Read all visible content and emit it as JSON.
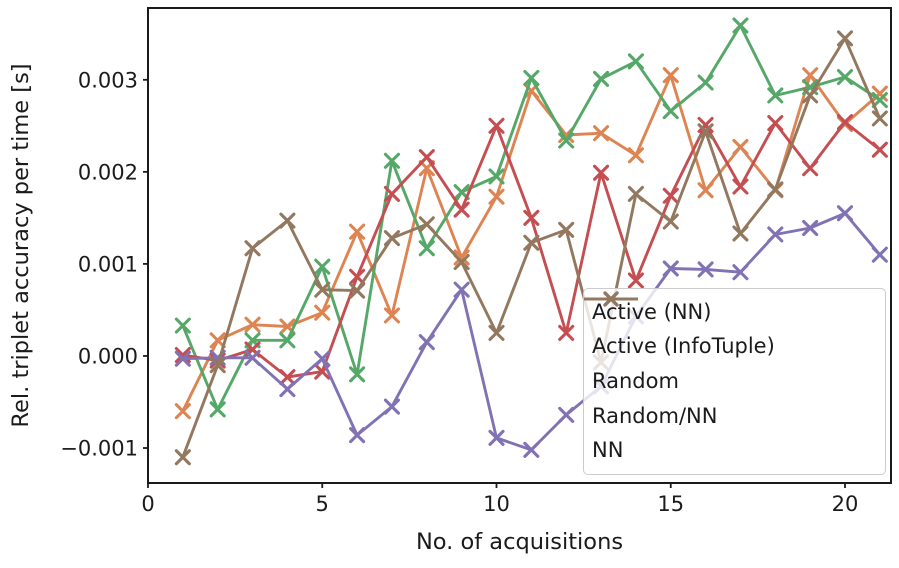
{
  "figure": {
    "xlabel": "No. of acquisitions",
    "ylabel": "Rel. triplet accuracy per time [s]"
  },
  "chart_data": {
    "type": "line",
    "title": "",
    "xlabel": "No. of acquisitions",
    "ylabel": "Rel. triplet accuracy per time [s]",
    "marker": "x",
    "grid": false,
    "legend_position": "lower right",
    "xlim": [
      0,
      21.32
    ],
    "ylim": [
      -0.00138,
      0.00378
    ],
    "xticks": {
      "values": [
        0,
        5,
        10,
        15,
        20
      ],
      "labels": [
        "0",
        "5",
        "10",
        "15",
        "20"
      ]
    },
    "yticks": {
      "values": [
        -0.001,
        0.0,
        0.001,
        0.002,
        0.003
      ],
      "labels": [
        "−0.001",
        "0.000",
        "0.001",
        "0.002",
        "0.003"
      ]
    },
    "x": [
      1,
      2,
      3,
      4,
      5,
      6,
      7,
      8,
      9,
      10,
      11,
      12,
      13,
      14,
      15,
      16,
      17,
      18,
      19,
      20,
      21
    ],
    "series": [
      {
        "name": "Active (NN)",
        "color": "#dd8452",
        "values": [
          -0.0006,
          0.00017,
          0.00034,
          0.00032,
          0.00047,
          0.00135,
          0.00044,
          0.00204,
          0.00107,
          0.00173,
          0.00288,
          0.0024,
          0.00242,
          0.00218,
          0.00305,
          0.0018,
          0.00227,
          0.0018,
          0.00305,
          0.00252,
          0.00285
        ]
      },
      {
        "name": "Active (InfoTuple)",
        "color": "#55a868",
        "values": [
          0.00033,
          -0.00058,
          0.00017,
          0.00017,
          0.00097,
          -0.0002,
          0.00212,
          0.00117,
          0.00178,
          0.00195,
          0.00302,
          0.00234,
          0.00301,
          0.0032,
          0.00266,
          0.00297,
          0.00359,
          0.00283,
          0.00292,
          0.00303,
          0.00278
        ]
      },
      {
        "name": "Random",
        "color": "#c44e52",
        "values": [
          1e-05,
          -5e-05,
          7e-05,
          -0.00023,
          -0.00017,
          0.00086,
          0.00176,
          0.00216,
          0.00159,
          0.0025,
          0.0015,
          0.00025,
          0.00199,
          0.00082,
          0.00174,
          0.00251,
          0.00184,
          0.00253,
          0.00204,
          0.00254,
          0.00224
        ]
      },
      {
        "name": "Random/NN",
        "color": "#8172b3",
        "values": [
          -3e-05,
          -2e-05,
          -2e-05,
          -0.00036,
          -3e-05,
          -0.00086,
          -0.00055,
          0.00015,
          0.00072,
          -0.00089,
          -0.00102,
          -0.00064,
          -0.00033,
          0.00043,
          0.00095,
          0.00094,
          0.00091,
          0.00132,
          0.00139,
          0.00155,
          0.0011
        ]
      },
      {
        "name": "NN",
        "color": "#937860",
        "values": [
          -0.0011,
          -0.0001,
          0.00117,
          0.00147,
          0.00072,
          0.00071,
          0.00128,
          0.00143,
          0.00102,
          0.00025,
          0.00123,
          0.00137,
          -7e-05,
          0.00176,
          0.00146,
          0.00244,
          0.00133,
          0.00181,
          0.00283,
          0.00345,
          0.00258
        ]
      }
    ]
  }
}
